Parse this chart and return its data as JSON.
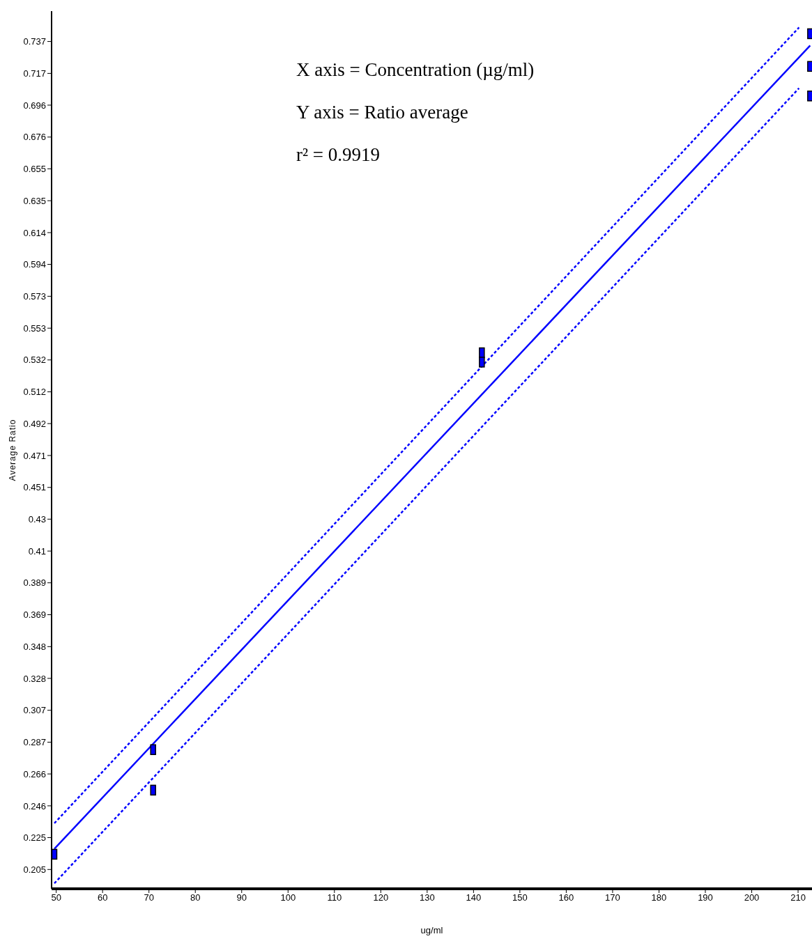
{
  "chart_data": {
    "type": "scatter",
    "xlabel": "ug/ml",
    "ylabel": "Average Ratio",
    "annotations": [
      "X axis = Concentration (µg/ml)",
      "Y axis = Ratio average",
      "r² = 0.9919"
    ],
    "xlim": [
      49,
      213
    ],
    "xticks": [
      50,
      60,
      70,
      80,
      90,
      100,
      110,
      120,
      130,
      140,
      150,
      160,
      170,
      180,
      190,
      200,
      210
    ],
    "ylim": [
      0.1926,
      0.7565
    ],
    "yticks": [
      {
        "value": 0.205,
        "label": "0.205"
      },
      {
        "value": 0.2255,
        "label": "0.225"
      },
      {
        "value": 0.2459,
        "label": "0.246"
      },
      {
        "value": 0.2664,
        "label": "0.266"
      },
      {
        "value": 0.2868,
        "label": "0.287"
      },
      {
        "value": 0.3073,
        "label": "0.307"
      },
      {
        "value": 0.3278,
        "label": "0.328"
      },
      {
        "value": 0.3482,
        "label": "0.348"
      },
      {
        "value": 0.3687,
        "label": "0.369"
      },
      {
        "value": 0.3892,
        "label": "0.389"
      },
      {
        "value": 0.4096,
        "label": "0.41"
      },
      {
        "value": 0.4301,
        "label": "0.43"
      },
      {
        "value": 0.4505,
        "label": "0.451"
      },
      {
        "value": 0.471,
        "label": "0.471"
      },
      {
        "value": 0.4915,
        "label": "0.492"
      },
      {
        "value": 0.5119,
        "label": "0.512"
      },
      {
        "value": 0.5324,
        "label": "0.532"
      },
      {
        "value": 0.5528,
        "label": "0.553"
      },
      {
        "value": 0.5733,
        "label": "0.573"
      },
      {
        "value": 0.5938,
        "label": "0.594"
      },
      {
        "value": 0.6142,
        "label": "0.614"
      },
      {
        "value": 0.6347,
        "label": "0.635"
      },
      {
        "value": 0.6552,
        "label": "0.655"
      },
      {
        "value": 0.6756,
        "label": "0.676"
      },
      {
        "value": 0.6961,
        "label": "0.696"
      },
      {
        "value": 0.7165,
        "label": "0.717"
      },
      {
        "value": 0.737,
        "label": "0.737"
      }
    ],
    "grid": false,
    "series": [
      {
        "type": "scatter",
        "color": "#0000ff",
        "marker": "square",
        "x": [
          49.6,
          70.9,
          70.9,
          141.8,
          141.8,
          212.6,
          212.6,
          212.6
        ],
        "values": [
          0.2148,
          0.282,
          0.256,
          0.537,
          0.531,
          0.742,
          0.721,
          0.702
        ]
      },
      {
        "type": "line",
        "color": "#0000ff",
        "line_style": "solid",
        "x": [
          49.6,
          212.6
        ],
        "values": [
          0.2183,
          0.7344
        ]
      },
      {
        "type": "line",
        "color": "#0000ff",
        "line_style": "dashed",
        "x": [
          49.6,
          210.2
        ],
        "values": [
          0.2347,
          0.746
        ]
      },
      {
        "type": "line",
        "color": "#0000ff",
        "line_style": "dashed",
        "x": [
          49.6,
          210.2
        ],
        "values": [
          0.1961,
          0.707
        ]
      }
    ]
  }
}
